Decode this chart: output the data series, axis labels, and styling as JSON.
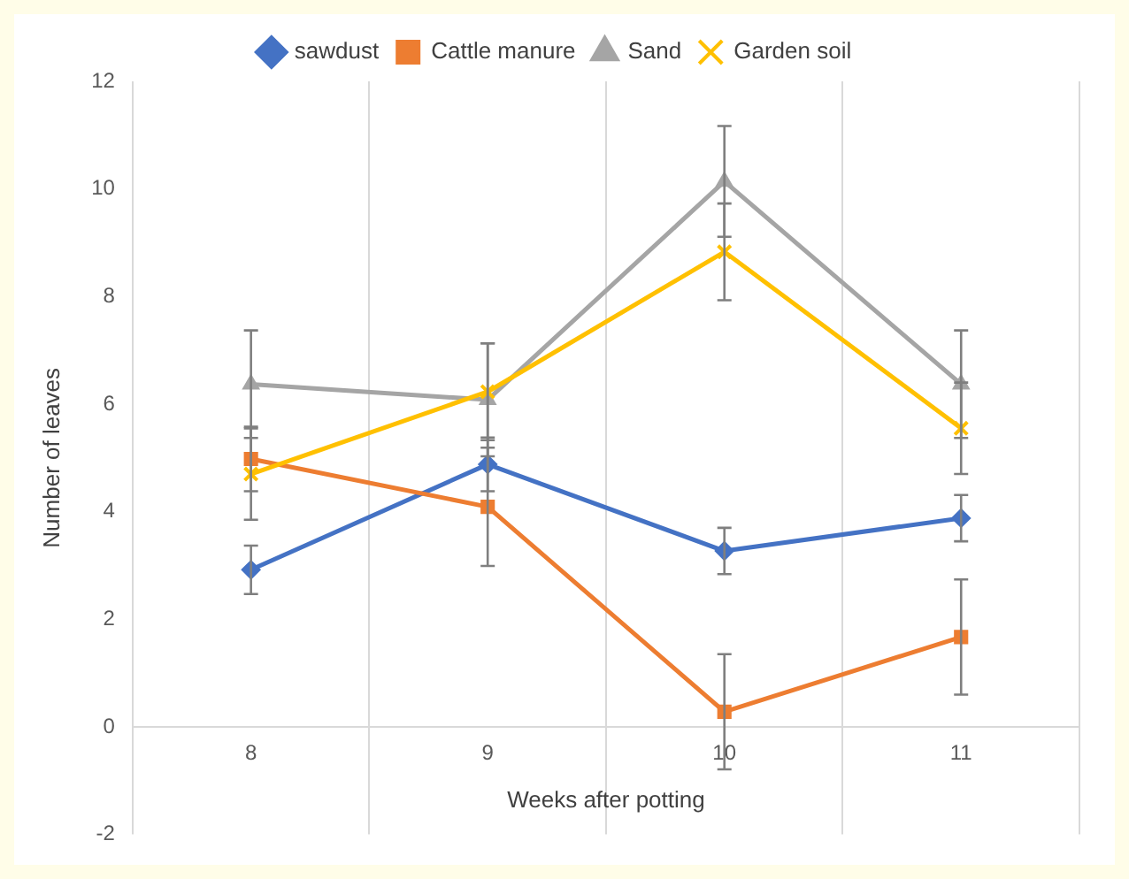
{
  "chart_data": {
    "type": "line",
    "xlabel": "Weeks after potting",
    "ylabel": "Number of leaves",
    "categories": [
      "8",
      "9",
      "10",
      "11"
    ],
    "ylim": [
      -2,
      12
    ],
    "yticks": [
      -2,
      0,
      2,
      4,
      6,
      8,
      10,
      12
    ],
    "grid": "x",
    "legend": "top",
    "line_style": "solid",
    "series": [
      {
        "name": "sawdust",
        "color": "#4472c4",
        "marker": "diamond",
        "values": [
          2.92,
          4.88,
          3.27,
          3.88
        ],
        "errors": [
          0.45,
          0.5,
          0.43,
          0.43
        ]
      },
      {
        "name": "Cattle manure",
        "color": "#ed7d31",
        "marker": "square",
        "values": [
          4.98,
          4.09,
          0.28,
          1.67
        ],
        "errors": [
          0.6,
          1.1,
          1.07,
          1.07
        ]
      },
      {
        "name": "Sand",
        "color": "#a5a5a5",
        "marker": "triangle",
        "values": [
          6.37,
          6.08,
          10.14,
          6.37
        ],
        "errors": [
          1.0,
          1.05,
          1.03,
          1.0
        ]
      },
      {
        "name": "Garden soil",
        "color": "#ffc000",
        "marker": "cross",
        "values": [
          4.7,
          6.23,
          8.83,
          5.55
        ],
        "errors": [
          0.85,
          0.9,
          0.9,
          0.85
        ]
      }
    ]
  }
}
